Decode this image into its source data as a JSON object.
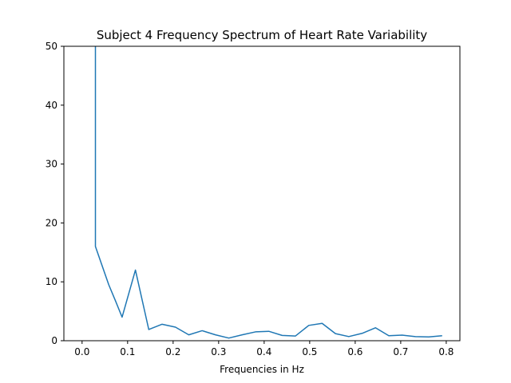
{
  "chart_data": {
    "type": "line",
    "title": "Subject 4 Frequency Spectrum of Heart Rate Variability",
    "xlabel": "Frequencies in Hz",
    "ylabel": "",
    "xlim": [
      -0.04,
      0.83
    ],
    "ylim": [
      0,
      50
    ],
    "x_ticks": [
      0.0,
      0.1,
      0.2,
      0.3,
      0.4,
      0.5,
      0.6,
      0.7,
      0.8
    ],
    "x_tick_labels": [
      "0.0",
      "0.1",
      "0.2",
      "0.3",
      "0.4",
      "0.5",
      "0.6",
      "0.7",
      "0.8"
    ],
    "y_ticks": [
      0,
      10,
      20,
      30,
      40,
      50
    ],
    "y_tick_labels": [
      "0",
      "10",
      "20",
      "30",
      "40",
      "50"
    ],
    "grid": false,
    "series": [
      {
        "color": "#1f77b4",
        "x": [
          0.0293,
          0.0293,
          0.0586,
          0.0732,
          0.0879,
          0.1172,
          0.1465,
          0.1758,
          0.2051,
          0.2344,
          0.2637,
          0.293,
          0.3223,
          0.3516,
          0.3809,
          0.4102,
          0.4395,
          0.4688,
          0.498,
          0.5273,
          0.5566,
          0.5859,
          0.6152,
          0.6445,
          0.6738,
          0.7031,
          0.7324,
          0.7617,
          0.791
        ],
        "y": [
          60,
          16,
          9.5,
          6.8,
          4.0,
          12.0,
          1.9,
          2.8,
          2.3,
          1.0,
          1.7,
          1.0,
          0.45,
          1.0,
          1.5,
          1.6,
          0.9,
          0.8,
          2.6,
          2.95,
          1.2,
          0.7,
          1.25,
          2.2,
          0.85,
          0.95,
          0.7,
          0.65,
          0.85
        ]
      }
    ]
  }
}
